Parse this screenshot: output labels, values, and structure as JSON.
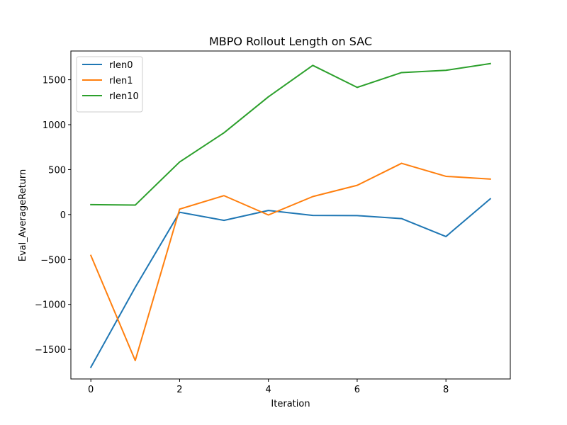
{
  "chart_data": {
    "type": "line",
    "title": "MBPO Rollout Length on SAC",
    "xlabel": "Iteration",
    "ylabel": "Eval_AverageReturn",
    "x": [
      0,
      1,
      2,
      3,
      4,
      5,
      6,
      7,
      8,
      9
    ],
    "xlim": [
      -0.45,
      9.45
    ],
    "ylim": [
      -1830,
      1820
    ],
    "xticks": [
      0,
      2,
      4,
      6,
      8
    ],
    "yticks": [
      -1500,
      -1000,
      -500,
      0,
      500,
      1000,
      1500
    ],
    "xtick_labels": [
      "0",
      "2",
      "4",
      "6",
      "8"
    ],
    "ytick_labels": [
      "−1500",
      "−1000",
      "−500",
      "0",
      "500",
      "1000",
      "1500"
    ],
    "grid": false,
    "legend_position": "top-left",
    "series": [
      {
        "name": "rlen0",
        "color": "#1f77b4",
        "values": [
          -1700,
          -810,
          25,
          -65,
          45,
          -10,
          -12,
          -45,
          -245,
          175
        ]
      },
      {
        "name": "rlen1",
        "color": "#ff7f0e",
        "values": [
          -455,
          -1625,
          60,
          210,
          -5,
          200,
          325,
          570,
          425,
          395
        ]
      },
      {
        "name": "rlen10",
        "color": "#2ca02c",
        "values": [
          110,
          105,
          585,
          910,
          1310,
          1660,
          1415,
          1580,
          1605,
          1680
        ]
      }
    ]
  }
}
